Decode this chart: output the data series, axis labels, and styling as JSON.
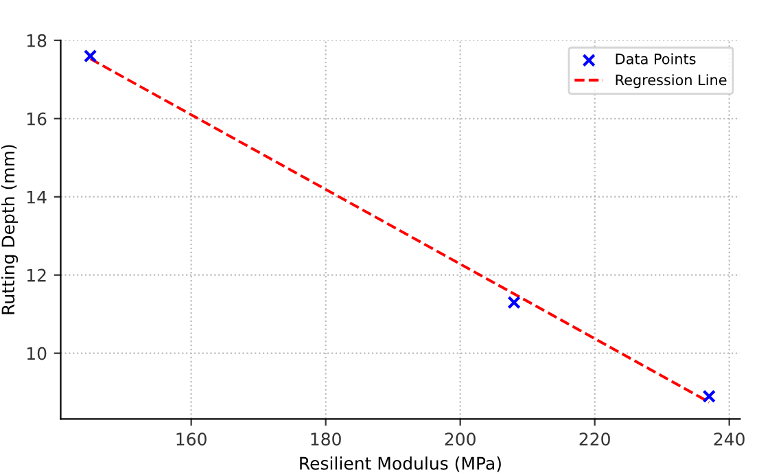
{
  "chart_data": {
    "type": "scatter",
    "xlabel": "Resilient Modulus (MPa)",
    "ylabel": "Rutting Depth (mm)",
    "xlim": [
      140.6,
      241.6
    ],
    "ylim": [
      8.32,
      18
    ],
    "xticks": [
      160,
      180,
      200,
      220,
      240
    ],
    "yticks": [
      10,
      12,
      14,
      16,
      18
    ],
    "grid": true,
    "legend": "top right",
    "series": [
      {
        "name": "Data Points",
        "color": "#0000ff",
        "marker": "cross",
        "x": [
          145,
          208,
          237
        ],
        "values": [
          17.6,
          11.3,
          8.9
        ]
      },
      {
        "name": "Regression Line",
        "type": "line",
        "color": "#ff0000",
        "line_style": "dashed",
        "marker": "none",
        "x": [
          145,
          237
        ],
        "values": [
          17.53,
          8.75
        ]
      }
    ]
  }
}
